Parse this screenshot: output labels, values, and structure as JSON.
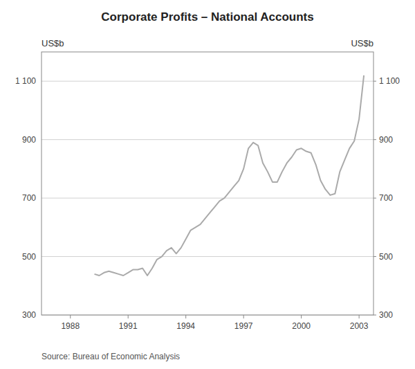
{
  "chart_data": {
    "type": "line",
    "title": "Corporate Profits – National Accounts",
    "ylabel": "US$b",
    "y2label": "US$b",
    "source": "Source: Bureau of Economic Analysis",
    "color": "#aaaaaa",
    "grid": true,
    "xlim": [
      1986.5,
      2003.75
    ],
    "xticks": [
      1988,
      1991,
      1994,
      1997,
      2000,
      2003
    ],
    "ylim": [
      300,
      1200
    ],
    "yticks": [
      300,
      500,
      700,
      900,
      {
        "value": 1100,
        "label": "1 100"
      }
    ],
    "y2lim": [
      300,
      1200
    ],
    "y2ticks": [
      300,
      500,
      700,
      900,
      {
        "value": 1100,
        "label": "1 100"
      }
    ],
    "x": [
      1989.25,
      1989.5,
      1989.75,
      1990.0,
      1990.25,
      1990.5,
      1990.75,
      1991.0,
      1991.25,
      1991.5,
      1991.75,
      1992.0,
      1992.25,
      1992.5,
      1992.75,
      1993.0,
      1993.25,
      1993.5,
      1993.75,
      1994.0,
      1994.25,
      1994.5,
      1994.75,
      1995.0,
      1995.25,
      1995.5,
      1995.75,
      1996.0,
      1996.25,
      1996.5,
      1996.75,
      1997.0,
      1997.25,
      1997.5,
      1997.75,
      1998.0,
      1998.25,
      1998.5,
      1998.75,
      1999.0,
      1999.25,
      1999.5,
      1999.75,
      2000.0,
      2000.25,
      2000.5,
      2000.75,
      2001.0,
      2001.25,
      2001.5,
      2001.75,
      2002.0,
      2002.25,
      2002.5,
      2002.75,
      2003.0,
      2003.25
    ],
    "values": [
      440,
      435,
      445,
      450,
      445,
      440,
      435,
      445,
      455,
      455,
      460,
      435,
      460,
      490,
      500,
      520,
      530,
      510,
      530,
      560,
      590,
      600,
      610,
      630,
      650,
      670,
      690,
      700,
      720,
      740,
      760,
      800,
      870,
      890,
      880,
      820,
      790,
      755,
      755,
      790,
      820,
      840,
      865,
      870,
      860,
      855,
      815,
      760,
      730,
      710,
      715,
      790,
      830,
      870,
      895,
      970,
      1120
    ]
  }
}
